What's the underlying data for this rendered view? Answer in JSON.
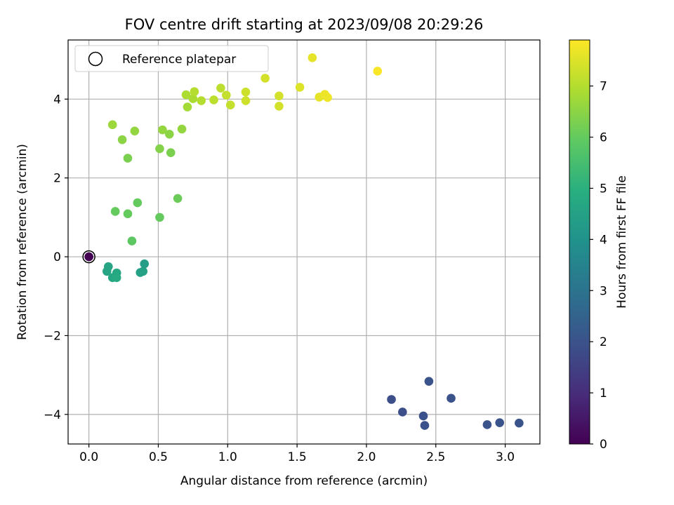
{
  "chart_data": {
    "type": "scatter",
    "title": "FOV centre drift starting at 2023/09/08 20:29:26",
    "xlabel": "Angular distance from reference (arcmin)",
    "ylabel": "Rotation from reference (arcmin)",
    "xlim": [
      -0.15,
      3.25
    ],
    "ylim": [
      -4.75,
      5.5
    ],
    "xticks": [
      0.0,
      0.5,
      1.0,
      1.5,
      2.0,
      2.5,
      3.0
    ],
    "xtick_labels": [
      "0.0",
      "0.5",
      "1.0",
      "1.5",
      "2.0",
      "2.5",
      "3.0"
    ],
    "yticks": [
      -4,
      -2,
      0,
      2,
      4
    ],
    "ytick_labels": [
      "−4",
      "−2",
      "0",
      "2",
      "4"
    ],
    "grid": true,
    "legend": {
      "placement": "upper-left",
      "entries": [
        {
          "label": "Reference platepar",
          "marker": "open-circle"
        }
      ]
    },
    "reference_point": {
      "x": 0.0,
      "y": 0.0,
      "hours": 0.0
    },
    "colorbar": {
      "label": "Hours from first FF file",
      "colormap": "viridis",
      "range": [
        0,
        7.9
      ],
      "ticks": [
        0,
        1,
        2,
        3,
        4,
        5,
        6,
        7
      ],
      "tick_labels": [
        "0",
        "1",
        "2",
        "3",
        "4",
        "5",
        "6",
        "7"
      ]
    },
    "points": [
      {
        "x": 0.0,
        "y": 0.0,
        "hours": 0.0
      },
      {
        "x": 2.18,
        "y": -3.62,
        "hours": 1.9
      },
      {
        "x": 2.26,
        "y": -3.94,
        "hours": 1.9
      },
      {
        "x": 2.41,
        "y": -4.04,
        "hours": 1.95
      },
      {
        "x": 2.42,
        "y": -4.28,
        "hours": 1.95
      },
      {
        "x": 2.45,
        "y": -3.16,
        "hours": 2.0
      },
      {
        "x": 2.61,
        "y": -3.59,
        "hours": 2.0
      },
      {
        "x": 2.87,
        "y": -4.26,
        "hours": 2.0
      },
      {
        "x": 2.96,
        "y": -4.21,
        "hours": 2.05
      },
      {
        "x": 3.1,
        "y": -4.22,
        "hours": 2.05
      },
      {
        "x": 0.13,
        "y": -0.37,
        "hours": 4.6
      },
      {
        "x": 0.14,
        "y": -0.25,
        "hours": 4.6
      },
      {
        "x": 0.17,
        "y": -0.53,
        "hours": 4.7
      },
      {
        "x": 0.2,
        "y": -0.41,
        "hours": 4.7
      },
      {
        "x": 0.2,
        "y": -0.53,
        "hours": 4.8
      },
      {
        "x": 0.37,
        "y": -0.4,
        "hours": 4.5
      },
      {
        "x": 0.39,
        "y": -0.37,
        "hours": 4.5
      },
      {
        "x": 0.4,
        "y": -0.18,
        "hours": 4.4
      },
      {
        "x": 0.31,
        "y": 0.4,
        "hours": 5.9
      },
      {
        "x": 0.51,
        "y": 1.0,
        "hours": 6.0
      },
      {
        "x": 0.19,
        "y": 1.15,
        "hours": 6.0
      },
      {
        "x": 0.28,
        "y": 1.09,
        "hours": 6.0
      },
      {
        "x": 0.35,
        "y": 1.37,
        "hours": 6.0
      },
      {
        "x": 0.64,
        "y": 1.48,
        "hours": 6.1
      },
      {
        "x": 0.28,
        "y": 2.5,
        "hours": 6.3
      },
      {
        "x": 0.59,
        "y": 2.64,
        "hours": 6.3
      },
      {
        "x": 0.51,
        "y": 2.74,
        "hours": 6.4
      },
      {
        "x": 0.24,
        "y": 2.97,
        "hours": 6.5
      },
      {
        "x": 0.58,
        "y": 3.11,
        "hours": 6.5
      },
      {
        "x": 0.33,
        "y": 3.19,
        "hours": 6.6
      },
      {
        "x": 0.53,
        "y": 3.22,
        "hours": 6.6
      },
      {
        "x": 0.67,
        "y": 3.24,
        "hours": 6.6
      },
      {
        "x": 0.17,
        "y": 3.35,
        "hours": 6.7
      },
      {
        "x": 0.71,
        "y": 3.8,
        "hours": 6.8
      },
      {
        "x": 0.7,
        "y": 4.11,
        "hours": 6.9
      },
      {
        "x": 0.75,
        "y": 4.01,
        "hours": 6.9
      },
      {
        "x": 0.76,
        "y": 4.19,
        "hours": 7.0
      },
      {
        "x": 0.81,
        "y": 3.96,
        "hours": 7.0
      },
      {
        "x": 0.9,
        "y": 3.98,
        "hours": 7.1
      },
      {
        "x": 0.95,
        "y": 4.28,
        "hours": 7.1
      },
      {
        "x": 0.99,
        "y": 4.1,
        "hours": 7.2
      },
      {
        "x": 1.02,
        "y": 3.85,
        "hours": 7.2
      },
      {
        "x": 1.13,
        "y": 4.18,
        "hours": 7.3
      },
      {
        "x": 1.13,
        "y": 3.96,
        "hours": 7.3
      },
      {
        "x": 1.27,
        "y": 4.53,
        "hours": 7.4
      },
      {
        "x": 1.37,
        "y": 4.08,
        "hours": 7.4
      },
      {
        "x": 1.37,
        "y": 3.82,
        "hours": 7.4
      },
      {
        "x": 1.52,
        "y": 4.3,
        "hours": 7.5
      },
      {
        "x": 1.61,
        "y": 5.05,
        "hours": 7.6
      },
      {
        "x": 1.66,
        "y": 4.05,
        "hours": 7.6
      },
      {
        "x": 1.7,
        "y": 4.12,
        "hours": 7.7
      },
      {
        "x": 1.72,
        "y": 4.04,
        "hours": 7.7
      },
      {
        "x": 2.08,
        "y": 4.71,
        "hours": 7.85
      }
    ]
  }
}
